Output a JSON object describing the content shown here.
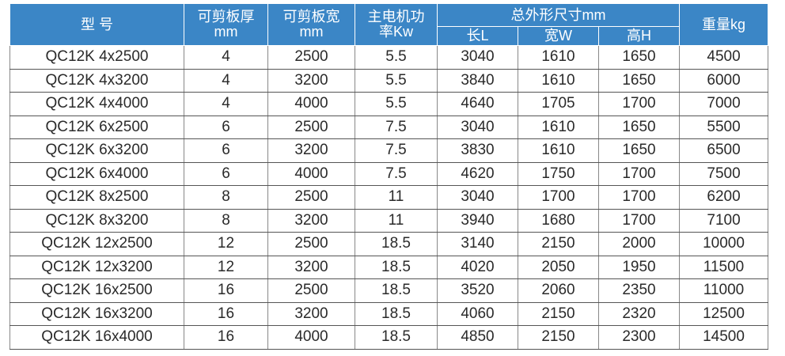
{
  "table": {
    "header": {
      "left": [
        "型 号",
        "可剪板厚\nmm",
        "可剪板宽\nmm",
        "主电机功\n率Kw"
      ],
      "dimensions": "总外形尺寸mm",
      "dimension_parts": [
        "长L",
        "宽W",
        "高H"
      ],
      "weight": "重量kg"
    },
    "rows": [
      [
        "QC12K 4x2500",
        4,
        2500,
        5.5,
        3040,
        1610,
        1650,
        4500
      ],
      [
        "QC12K 4x3200",
        4,
        3200,
        5.5,
        3840,
        1610,
        1650,
        6000
      ],
      [
        "QC12K 4x4000",
        4,
        4000,
        5.5,
        4640,
        1705,
        1700,
        7000
      ],
      [
        "QC12K 6x2500",
        6,
        2500,
        7.5,
        3040,
        1610,
        1650,
        5500
      ],
      [
        "QC12K 6x3200",
        6,
        3200,
        7.5,
        3830,
        1610,
        1650,
        6500
      ],
      [
        "QC12K 6x4000",
        6,
        4000,
        7.5,
        4620,
        1750,
        1700,
        7500
      ],
      [
        "QC12K 8x2500",
        8,
        2500,
        11,
        3040,
        1700,
        1700,
        6200
      ],
      [
        "QC12K 8x3200",
        8,
        3200,
        11,
        3940,
        1680,
        1700,
        7100
      ],
      [
        "QC12K 12x2500",
        12,
        2500,
        18.5,
        3140,
        2150,
        2000,
        10000
      ],
      [
        "QC12K 12x3200",
        12,
        3200,
        18.5,
        4020,
        2050,
        1950,
        11500
      ],
      [
        "QC12K 16x2500",
        16,
        2500,
        18.5,
        3520,
        2060,
        2350,
        11000
      ],
      [
        "QC12K 16x3200",
        16,
        3200,
        18.5,
        4060,
        2150,
        2320,
        12500
      ],
      [
        "QC12K 16x4000",
        16,
        4000,
        18.5,
        4850,
        2150,
        2300,
        14500
      ]
    ]
  }
}
